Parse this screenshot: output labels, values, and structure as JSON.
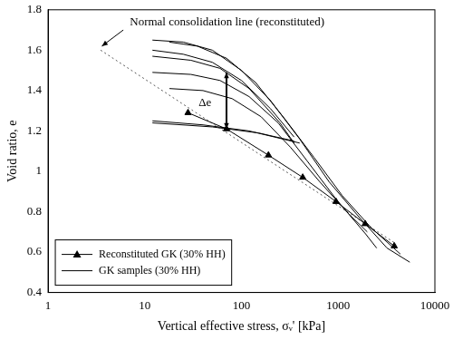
{
  "chart_data": {
    "type": "line",
    "x_label": "Vertical effective stress, σᵥ' [kPa]",
    "y_label": "Void ratio, e",
    "log": "x",
    "grid": false,
    "legend": "lower left",
    "xlim": [
      1,
      10000
    ],
    "xticks": [
      1,
      10,
      100,
      1000,
      10000
    ],
    "ylim": [
      0.4,
      1.8
    ],
    "yticks": [
      0.4,
      0.6,
      0.8,
      1,
      1.2,
      1.4,
      1.6,
      1.8
    ],
    "series": [
      {
        "name": "Reconstituted GK (30% HH)",
        "color": "#000000",
        "marker": "triangle",
        "line_style": "solid",
        "x": [
          28,
          70,
          190,
          430,
          950,
          1900,
          3800
        ],
        "values": [
          1.29,
          1.21,
          1.08,
          0.97,
          0.85,
          0.74,
          0.63
        ]
      },
      {
        "name": "Reconstituted GK (30% HH)",
        "color": "#000000",
        "marker": "none",
        "line_style": "solid",
        "x": [
          12,
          50,
          150,
          350
        ],
        "values": [
          1.24,
          1.22,
          1.19,
          1.15
        ]
      },
      {
        "name": "Reconstituted GK (30% HH)",
        "color": "#000000",
        "marker": "none",
        "line_style": "solid",
        "x": [
          12,
          40,
          120,
          400
        ],
        "values": [
          1.25,
          1.23,
          1.2,
          1.14
        ]
      },
      {
        "name": "GK samples (30% HH)",
        "color": "#000000",
        "marker": "none",
        "line_style": "solid",
        "x": [
          12,
          25,
          50,
          100,
          200,
          400,
          800,
          1600,
          3200,
          5500
        ],
        "values": [
          1.65,
          1.64,
          1.6,
          1.5,
          1.35,
          1.16,
          0.95,
          0.78,
          0.62,
          0.55
        ]
      },
      {
        "name": "GK samples (30% HH)",
        "color": "#000000",
        "marker": "none",
        "line_style": "solid",
        "x": [
          18,
          35,
          70,
          140,
          280,
          560,
          1100,
          2200,
          4400
        ],
        "values": [
          1.64,
          1.62,
          1.56,
          1.44,
          1.26,
          1.07,
          0.88,
          0.72,
          0.59
        ]
      },
      {
        "name": "GK samples (30% HH)",
        "color": "#000000",
        "marker": "none",
        "line_style": "solid",
        "x": [
          12,
          25,
          50,
          100,
          200,
          350
        ],
        "values": [
          1.6,
          1.58,
          1.54,
          1.45,
          1.31,
          1.17
        ]
      },
      {
        "name": "GK samples (30% HH)",
        "color": "#000000",
        "marker": "none",
        "line_style": "solid",
        "x": [
          12,
          30,
          60,
          120,
          250,
          350
        ],
        "values": [
          1.57,
          1.55,
          1.51,
          1.41,
          1.24,
          1.14
        ]
      },
      {
        "name": "GK samples (30% HH)",
        "color": "#000000",
        "marker": "none",
        "line_style": "solid",
        "x": [
          12,
          30,
          60,
          120,
          240,
          480,
          960,
          1920,
          2500
        ],
        "values": [
          1.49,
          1.48,
          1.45,
          1.37,
          1.24,
          1.05,
          0.86,
          0.69,
          0.62
        ]
      },
      {
        "name": "GK samples (30% HH)",
        "color": "#000000",
        "marker": "none",
        "line_style": "solid",
        "x": [
          18,
          40,
          80,
          160,
          320,
          640,
          1280,
          2000
        ],
        "values": [
          1.41,
          1.4,
          1.36,
          1.27,
          1.12,
          0.95,
          0.79,
          0.7
        ]
      }
    ],
    "reference_lines": [
      {
        "color": "#555555",
        "line_style": "dotted",
        "x": [
          3.5,
          4000
        ],
        "values": [
          1.6,
          0.64
        ]
      }
    ],
    "annotations": [
      {
        "text": "Normal consolidation line (reconstituted)",
        "x": 7,
        "y": 1.74,
        "arrow": {
          "x": [
            6,
            3.6
          ],
          "y": [
            1.7,
            1.62
          ]
        }
      },
      {
        "text": "Δe",
        "x": 36,
        "y": 1.34,
        "arrow": {
          "x": [
            70,
            70
          ],
          "y": [
            1.21,
            1.49
          ]
        }
      }
    ]
  }
}
